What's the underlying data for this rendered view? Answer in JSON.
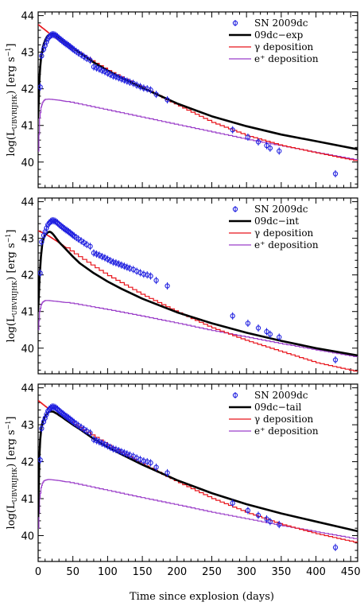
{
  "chart_data": {
    "type": "line",
    "xlabel": "Time since explosion (days)",
    "xlim": [
      0,
      460
    ],
    "x_ticks": [
      "0",
      "50",
      "100",
      "150",
      "200",
      "250",
      "300",
      "350",
      "400",
      "450"
    ],
    "ylabel_parts": {
      "prefix": "log(L",
      "subscript": "UBVRIJHK",
      "units": ") [erg s",
      "superscript": "−1",
      "suffix": "]"
    },
    "colors": {
      "observed": "#2020e0",
      "total": "#000000",
      "gamma": "#e8141b",
      "positron": "#9b3fc9"
    },
    "observed": {
      "name": "SN 2009dc",
      "days": [
        3,
        5,
        8,
        10,
        12,
        14,
        16,
        18,
        20,
        22,
        24,
        26,
        28,
        30,
        32,
        34,
        36,
        38,
        40,
        42,
        44,
        46,
        48,
        50,
        52,
        55,
        58,
        62,
        66,
        70,
        75,
        80,
        84,
        88,
        92,
        96,
        100,
        104,
        108,
        112,
        116,
        120,
        124,
        128,
        132,
        137,
        142,
        147,
        152,
        157,
        162,
        170,
        186,
        280,
        302,
        317,
        329,
        334,
        347,
        428
      ],
      "log_L": [
        42.05,
        42.9,
        43.08,
        43.18,
        43.28,
        43.37,
        43.42,
        43.46,
        43.48,
        43.48,
        43.47,
        43.45,
        43.42,
        43.38,
        43.35,
        43.32,
        43.29,
        43.26,
        43.23,
        43.21,
        43.18,
        43.15,
        43.12,
        43.09,
        43.06,
        43.02,
        42.98,
        42.93,
        42.88,
        42.83,
        42.78,
        42.6,
        42.57,
        42.54,
        42.5,
        42.47,
        42.43,
        42.39,
        42.35,
        42.33,
        42.3,
        42.27,
        42.24,
        42.21,
        42.18,
        42.15,
        42.1,
        42.06,
        42.02,
        42.0,
        41.97,
        41.85,
        41.7,
        40.88,
        40.68,
        40.55,
        40.45,
        40.38,
        40.3,
        39.68
      ],
      "error": 0.1
    },
    "panels": [
      {
        "ylim": [
          39.3,
          44.1
        ],
        "y_ticks": [
          "40",
          "41",
          "42",
          "43",
          "44"
        ],
        "model_name": "09dc−exp",
        "gamma_name": "γ deposition",
        "positron_name": "e⁺ deposition",
        "total": {
          "days": [
            0,
            1,
            2,
            3,
            4,
            5,
            6,
            7,
            8,
            10,
            12,
            14,
            16,
            18,
            20,
            22,
            24,
            26,
            28,
            30,
            35,
            40,
            50,
            60,
            70,
            80,
            100,
            120,
            150,
            200,
            250,
            300,
            350,
            400,
            460
          ],
          "log_L": [
            41.2,
            41.8,
            42.3,
            42.6,
            42.8,
            42.95,
            43.05,
            43.15,
            43.22,
            43.32,
            43.4,
            43.45,
            43.48,
            43.5,
            43.5,
            43.49,
            43.47,
            43.45,
            43.42,
            43.4,
            43.33,
            43.26,
            43.12,
            42.98,
            42.85,
            42.72,
            42.5,
            42.3,
            42.03,
            41.6,
            41.25,
            40.98,
            40.75,
            40.57,
            40.35
          ]
        },
        "gamma": {
          "days": [
            0,
            10,
            20,
            30,
            50,
            80,
            100,
            150,
            200,
            250,
            300,
            350,
            400,
            460
          ],
          "log_L": [
            43.75,
            43.6,
            43.45,
            43.32,
            43.08,
            42.72,
            42.5,
            42.02,
            41.55,
            41.08,
            40.72,
            40.45,
            40.25,
            40.02
          ]
        },
        "positron": {
          "days": [
            0,
            2,
            4,
            6,
            8,
            10,
            15,
            20,
            30,
            50,
            100,
            150,
            200,
            250,
            300,
            350,
            400,
            460
          ],
          "log_L": [
            40.3,
            41.2,
            41.5,
            41.62,
            41.68,
            41.71,
            41.72,
            41.71,
            41.69,
            41.62,
            41.42,
            41.22,
            41.02,
            40.82,
            40.62,
            40.44,
            40.26,
            40.05
          ]
        }
      },
      {
        "ylim": [
          39.3,
          44.1
        ],
        "y_ticks": [
          "40",
          "41",
          "42",
          "43",
          "44"
        ],
        "model_name": "09dc−int",
        "gamma_name": "γ deposition",
        "positron_name": "e⁺ deposition",
        "total": {
          "days": [
            0,
            2,
            4,
            6,
            8,
            10,
            12,
            14,
            16,
            18,
            20,
            22,
            24,
            26,
            28,
            30,
            35,
            40,
            50,
            60,
            80,
            100,
            120,
            150,
            200,
            250,
            300,
            350,
            400,
            460
          ],
          "log_L": [
            41.0,
            41.9,
            42.5,
            42.85,
            43.0,
            43.08,
            43.13,
            43.16,
            43.18,
            43.17,
            43.14,
            43.1,
            43.05,
            43.0,
            42.95,
            42.9,
            42.8,
            42.7,
            42.5,
            42.32,
            42.05,
            41.82,
            41.62,
            41.35,
            40.98,
            40.68,
            40.42,
            40.2,
            40.0,
            39.8
          ]
        },
        "gamma": {
          "days": [
            0,
            10,
            20,
            30,
            50,
            80,
            100,
            150,
            200,
            250,
            300,
            350,
            400,
            460
          ],
          "log_L": [
            43.2,
            43.12,
            43.0,
            42.88,
            42.6,
            42.22,
            41.98,
            41.45,
            40.98,
            40.55,
            40.2,
            39.9,
            39.6,
            39.35
          ]
        },
        "positron": {
          "days": [
            0,
            2,
            4,
            6,
            8,
            10,
            15,
            20,
            30,
            50,
            100,
            150,
            200,
            250,
            300,
            350,
            400,
            460
          ],
          "log_L": [
            40.5,
            41.0,
            41.18,
            41.25,
            41.28,
            41.3,
            41.3,
            41.29,
            41.27,
            41.22,
            41.05,
            40.87,
            40.68,
            40.48,
            40.3,
            40.12,
            39.95,
            39.75
          ]
        }
      },
      {
        "ylim": [
          39.3,
          44.1
        ],
        "y_ticks": [
          "40",
          "41",
          "42",
          "43",
          "44"
        ],
        "model_name": "09dc−tail",
        "gamma_name": "γ deposition",
        "positron_name": "e⁺ deposition",
        "total": {
          "days": [
            0,
            1,
            2,
            3,
            4,
            5,
            6,
            8,
            10,
            12,
            14,
            16,
            18,
            20,
            22,
            24,
            26,
            28,
            30,
            35,
            40,
            50,
            60,
            80,
            100,
            120,
            150,
            200,
            250,
            300,
            350,
            400,
            460
          ],
          "log_L": [
            40.5,
            41.5,
            42.2,
            42.6,
            42.8,
            42.95,
            43.05,
            43.15,
            43.22,
            43.28,
            43.32,
            43.35,
            43.36,
            43.36,
            43.35,
            43.33,
            43.31,
            43.29,
            43.26,
            43.2,
            43.13,
            43.0,
            42.88,
            42.62,
            42.4,
            42.2,
            41.92,
            41.5,
            41.15,
            40.85,
            40.6,
            40.38,
            40.12
          ]
        },
        "gamma": {
          "days": [
            0,
            10,
            20,
            30,
            50,
            80,
            100,
            150,
            200,
            250,
            300,
            350,
            400,
            460
          ],
          "log_L": [
            43.65,
            43.5,
            43.36,
            43.25,
            43.02,
            42.68,
            42.45,
            41.92,
            41.45,
            41.0,
            40.62,
            40.3,
            40.05,
            39.8
          ]
        },
        "positron": {
          "days": [
            0,
            2,
            4,
            6,
            8,
            10,
            15,
            20,
            30,
            50,
            100,
            150,
            200,
            250,
            300,
            350,
            400,
            460
          ],
          "log_L": [
            40.2,
            41.0,
            41.3,
            41.42,
            41.48,
            41.5,
            41.52,
            41.51,
            41.49,
            41.42,
            41.22,
            41.02,
            40.83,
            40.63,
            40.45,
            40.27,
            40.1,
            39.9
          ]
        }
      }
    ]
  }
}
